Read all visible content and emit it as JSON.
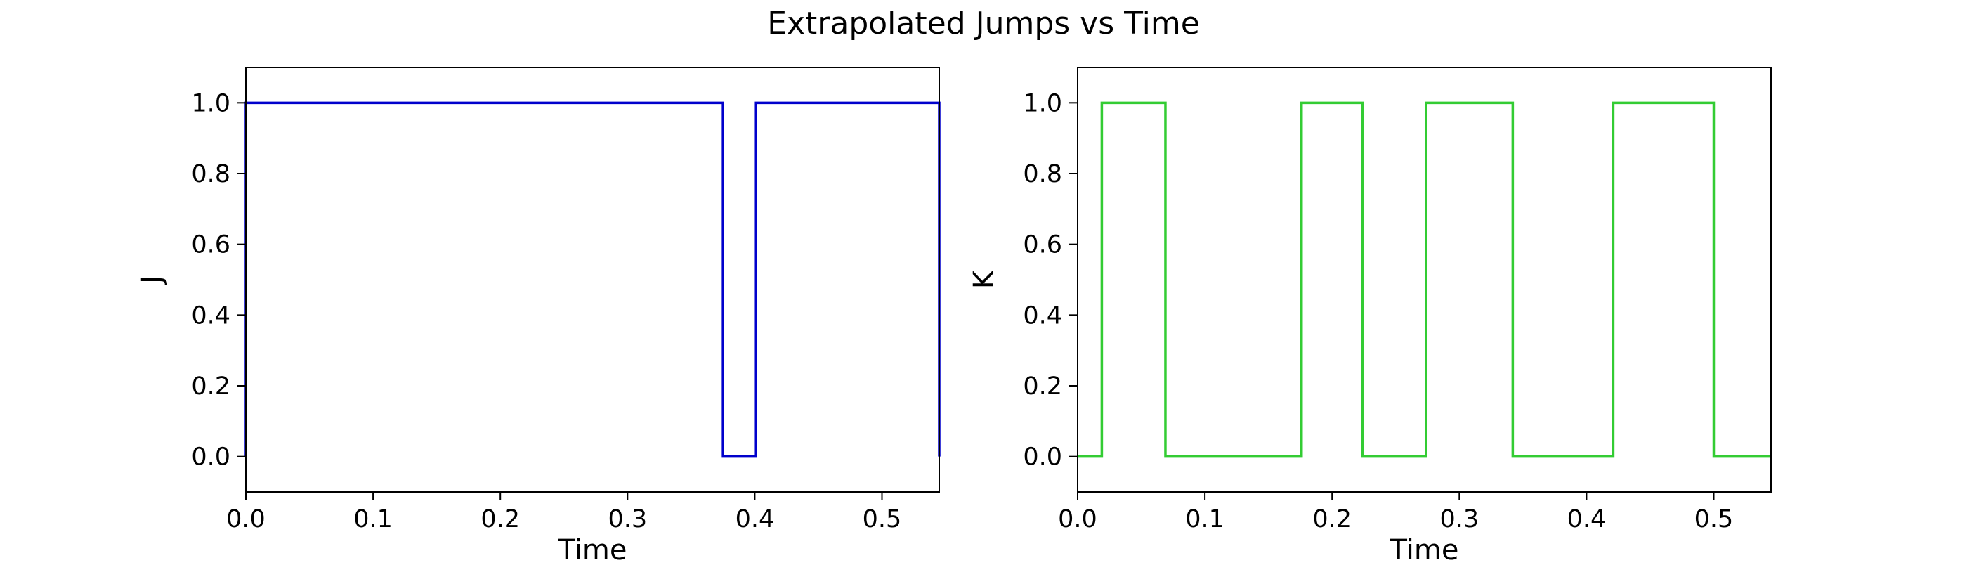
{
  "figure": {
    "title": "Extrapolated Jumps vs Time"
  },
  "chart_data": [
    {
      "type": "line",
      "step": "post",
      "xlabel": "Time",
      "ylabel": "J",
      "xlim": [
        0,
        0.545
      ],
      "ylim": [
        -0.1,
        1.1
      ],
      "xticks": [
        "0.0",
        "0.1",
        "0.2",
        "0.3",
        "0.4",
        "0.5"
      ],
      "yticks": [
        "0.0",
        "0.2",
        "0.4",
        "0.6",
        "0.8",
        "1.0"
      ],
      "grid": false,
      "color": "#0000cc",
      "series": [
        {
          "x": [
            0.0,
            0.0,
            0.375,
            0.375,
            0.401,
            0.401,
            0.545,
            0.545
          ],
          "y": [
            0,
            1,
            1,
            0,
            0,
            1,
            1,
            0
          ]
        }
      ]
    },
    {
      "type": "line",
      "step": "post",
      "xlabel": "Time",
      "ylabel": "K",
      "xlim": [
        0,
        0.545
      ],
      "ylim": [
        -0.1,
        1.1
      ],
      "xticks": [
        "0.0",
        "0.1",
        "0.2",
        "0.3",
        "0.4",
        "0.5"
      ],
      "yticks": [
        "0.0",
        "0.2",
        "0.4",
        "0.6",
        "0.8",
        "1.0"
      ],
      "grid": false,
      "color": "#33cc33",
      "series": [
        {
          "x": [
            0.0,
            0.019,
            0.019,
            0.069,
            0.069,
            0.176,
            0.176,
            0.224,
            0.224,
            0.274,
            0.274,
            0.342,
            0.342,
            0.421,
            0.421,
            0.5,
            0.5,
            0.545
          ],
          "y": [
            0,
            0,
            1,
            1,
            0,
            0,
            1,
            1,
            0,
            0,
            1,
            1,
            0,
            0,
            1,
            1,
            0,
            0
          ]
        }
      ]
    }
  ]
}
